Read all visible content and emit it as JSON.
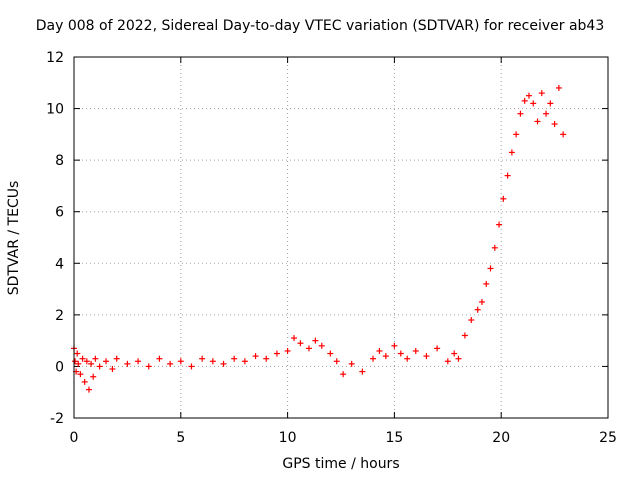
{
  "chart_data": {
    "type": "scatter",
    "title": "Day 008 of 2022, Sidereal Day-to-day VTEC variation (SDTVAR) for receiver ab43",
    "xlabel": "GPS time / hours",
    "ylabel": "SDTVAR / TECUs",
    "xlim": [
      0,
      25
    ],
    "ylim": [
      -2,
      12
    ],
    "xticks": [
      0,
      5,
      10,
      15,
      20,
      25
    ],
    "yticks": [
      -2,
      0,
      2,
      4,
      6,
      8,
      10,
      12
    ],
    "grid": true,
    "marker": "+",
    "series": [
      {
        "name": "SDTVAR",
        "color": "#ff0000",
        "x": [
          0.0,
          0.05,
          0.1,
          0.15,
          0.2,
          0.3,
          0.4,
          0.5,
          0.6,
          0.7,
          0.8,
          0.9,
          1.0,
          1.2,
          1.5,
          1.8,
          2.0,
          2.5,
          3.0,
          3.5,
          4.0,
          4.5,
          5.0,
          5.5,
          6.0,
          6.5,
          7.0,
          7.5,
          8.0,
          8.5,
          9.0,
          9.5,
          10.0,
          10.3,
          10.6,
          11.0,
          11.3,
          11.6,
          12.0,
          12.3,
          12.6,
          13.0,
          13.5,
          14.0,
          14.3,
          14.6,
          15.0,
          15.3,
          15.6,
          16.0,
          16.5,
          17.0,
          17.5,
          17.8,
          18.0,
          18.3,
          18.6,
          18.9,
          19.1,
          19.3,
          19.5,
          19.7,
          19.9,
          20.1,
          20.3,
          20.5,
          20.7,
          20.9,
          21.1,
          21.3,
          21.5,
          21.7,
          21.9,
          22.1,
          22.3,
          22.5,
          22.7,
          22.9
        ],
        "y": [
          0.7,
          0.2,
          -0.2,
          0.5,
          0.1,
          -0.3,
          0.3,
          -0.6,
          0.2,
          -0.9,
          0.1,
          -0.4,
          0.3,
          0.0,
          0.2,
          -0.1,
          0.3,
          0.1,
          0.2,
          0.0,
          0.3,
          0.1,
          0.2,
          0.0,
          0.3,
          0.2,
          0.1,
          0.3,
          0.2,
          0.4,
          0.3,
          0.5,
          0.6,
          1.1,
          0.9,
          0.7,
          1.0,
          0.8,
          0.5,
          0.2,
          -0.3,
          0.1,
          -0.2,
          0.3,
          0.6,
          0.4,
          0.8,
          0.5,
          0.3,
          0.6,
          0.4,
          0.7,
          0.2,
          0.5,
          0.3,
          1.2,
          1.8,
          2.2,
          2.5,
          3.2,
          3.8,
          4.6,
          5.5,
          6.5,
          7.4,
          8.3,
          9.0,
          9.8,
          10.3,
          10.5,
          10.2,
          9.5,
          10.6,
          9.8,
          10.2,
          9.4,
          10.8,
          9.0
        ]
      }
    ]
  }
}
